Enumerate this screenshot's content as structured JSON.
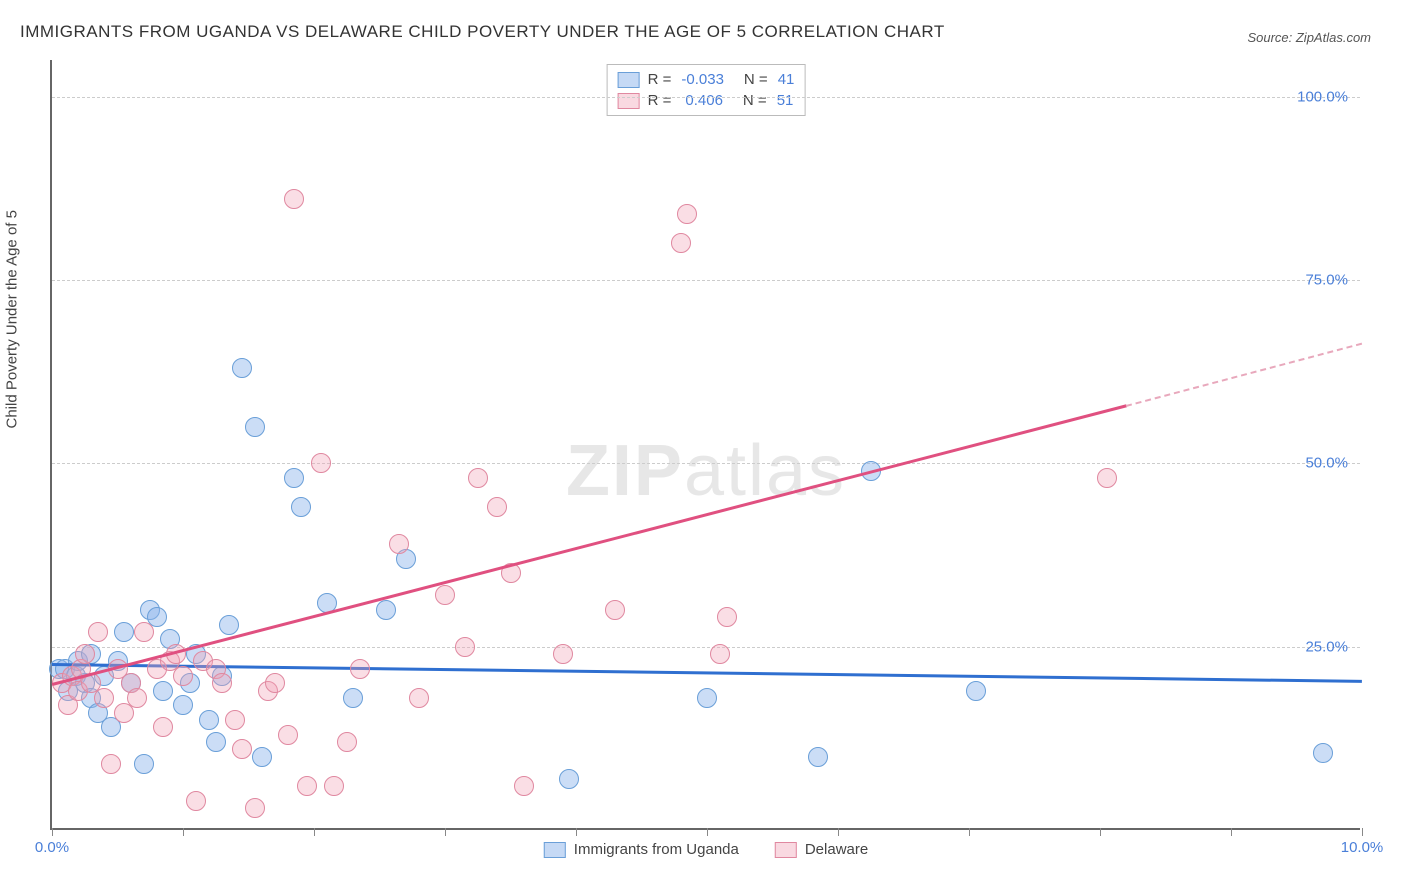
{
  "title": "IMMIGRANTS FROM UGANDA VS DELAWARE CHILD POVERTY UNDER THE AGE OF 5 CORRELATION CHART",
  "source": "Source: ZipAtlas.com",
  "watermark_a": "ZIP",
  "watermark_b": "atlas",
  "y_axis_label": "Child Poverty Under the Age of 5",
  "chart": {
    "type": "scatter",
    "xlim": [
      0,
      10
    ],
    "ylim": [
      0,
      105
    ],
    "x_ticks": [
      0,
      1,
      2,
      3,
      4,
      5,
      6,
      7,
      8,
      9,
      10
    ],
    "x_tick_labels": {
      "0": "0.0%",
      "10": "10.0%"
    },
    "y_ticks": [
      25,
      50,
      75,
      100
    ],
    "y_tick_labels": {
      "25": "25.0%",
      "50": "50.0%",
      "75": "75.0%",
      "100": "100.0%"
    },
    "background_color": "#ffffff",
    "grid_color": "#cccccc",
    "axis_color": "#666666",
    "tick_label_color": "#4a7fd8",
    "marker_radius": 10,
    "series": [
      {
        "name": "Immigrants from Uganda",
        "color_fill": "rgba(140,180,235,0.45)",
        "color_border": "#6a9fd8",
        "R": "-0.033",
        "N": "41",
        "trend": {
          "x1": 0.0,
          "y1": 22.8,
          "x2": 10.0,
          "y2": 20.5,
          "color": "#2f6fd0"
        },
        "points": [
          [
            0.05,
            22
          ],
          [
            0.1,
            22
          ],
          [
            0.12,
            19
          ],
          [
            0.18,
            21
          ],
          [
            0.2,
            23
          ],
          [
            0.25,
            20
          ],
          [
            0.3,
            18
          ],
          [
            0.3,
            24
          ],
          [
            0.35,
            16
          ],
          [
            0.4,
            21
          ],
          [
            0.45,
            14
          ],
          [
            0.5,
            23
          ],
          [
            0.55,
            27
          ],
          [
            0.6,
            20
          ],
          [
            0.7,
            9
          ],
          [
            0.75,
            30
          ],
          [
            0.8,
            29
          ],
          [
            0.85,
            19
          ],
          [
            0.9,
            26
          ],
          [
            1.0,
            17
          ],
          [
            1.05,
            20
          ],
          [
            1.1,
            24
          ],
          [
            1.2,
            15
          ],
          [
            1.25,
            12
          ],
          [
            1.3,
            21
          ],
          [
            1.35,
            28
          ],
          [
            1.45,
            63
          ],
          [
            1.55,
            55
          ],
          [
            1.6,
            10
          ],
          [
            1.85,
            48
          ],
          [
            1.9,
            44
          ],
          [
            2.1,
            31
          ],
          [
            2.3,
            18
          ],
          [
            2.55,
            30
          ],
          [
            2.7,
            37
          ],
          [
            3.95,
            7
          ],
          [
            5.0,
            18
          ],
          [
            5.85,
            10
          ],
          [
            6.25,
            49
          ],
          [
            7.05,
            19
          ],
          [
            9.7,
            10.5
          ]
        ]
      },
      {
        "name": "Delaware",
        "color_fill": "rgba(240,160,180,0.35)",
        "color_border": "#e088a0",
        "R": "0.406",
        "N": "51",
        "trend": {
          "x1": 0.0,
          "y1": 20.0,
          "x2": 8.2,
          "y2": 58.0,
          "color": "#e05080",
          "dash_x1": 8.2,
          "dash_y1": 58.0,
          "dash_x2": 10.0,
          "dash_y2": 66.5
        },
        "points": [
          [
            0.08,
            20
          ],
          [
            0.12,
            17
          ],
          [
            0.15,
            21
          ],
          [
            0.2,
            19
          ],
          [
            0.22,
            22
          ],
          [
            0.25,
            24
          ],
          [
            0.3,
            20
          ],
          [
            0.35,
            27
          ],
          [
            0.4,
            18
          ],
          [
            0.45,
            9
          ],
          [
            0.5,
            22
          ],
          [
            0.55,
            16
          ],
          [
            0.6,
            20
          ],
          [
            0.65,
            18
          ],
          [
            0.7,
            27
          ],
          [
            0.8,
            22
          ],
          [
            0.85,
            14
          ],
          [
            0.9,
            23
          ],
          [
            0.95,
            24
          ],
          [
            1.0,
            21
          ],
          [
            1.1,
            4
          ],
          [
            1.15,
            23
          ],
          [
            1.25,
            22
          ],
          [
            1.3,
            20
          ],
          [
            1.4,
            15
          ],
          [
            1.45,
            11
          ],
          [
            1.55,
            3
          ],
          [
            1.65,
            19
          ],
          [
            1.7,
            20
          ],
          [
            1.8,
            13
          ],
          [
            1.85,
            86
          ],
          [
            1.95,
            6
          ],
          [
            2.05,
            50
          ],
          [
            2.15,
            6
          ],
          [
            2.25,
            12
          ],
          [
            2.35,
            22
          ],
          [
            2.65,
            39
          ],
          [
            2.8,
            18
          ],
          [
            3.0,
            32
          ],
          [
            3.15,
            25
          ],
          [
            3.25,
            48
          ],
          [
            3.4,
            44
          ],
          [
            3.5,
            35
          ],
          [
            3.6,
            6
          ],
          [
            3.9,
            24
          ],
          [
            4.3,
            30
          ],
          [
            4.8,
            80
          ],
          [
            4.85,
            84
          ],
          [
            5.1,
            24
          ],
          [
            5.15,
            29
          ],
          [
            8.05,
            48
          ]
        ]
      }
    ]
  },
  "legend_top": {
    "r_label": "R =",
    "n_label": "N ="
  },
  "legend_bottom": {
    "items": [
      "Immigrants from Uganda",
      "Delaware"
    ]
  }
}
